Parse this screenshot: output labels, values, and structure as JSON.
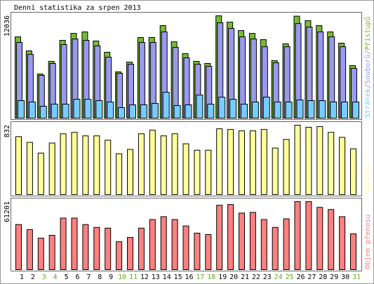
{
  "chart_data": {
    "type": "bar",
    "title": "Denní statistika za srpen 2013",
    "categories": [
      "1",
      "2",
      "3",
      "4",
      "5",
      "6",
      "7",
      "8",
      "9",
      "10",
      "11",
      "12",
      "13",
      "14",
      "15",
      "16",
      "17",
      "18",
      "19",
      "20",
      "21",
      "22",
      "23",
      "24",
      "25",
      "26",
      "27",
      "28",
      "29",
      "30",
      "31"
    ],
    "weekend": [
      2,
      3,
      9,
      10,
      16,
      17,
      23,
      24,
      30
    ],
    "weekday_color": "#000000",
    "weekend_color": "#66aa22",
    "legend_separator": "/",
    "panels": [
      {
        "ylim": [
          0,
          12036
        ],
        "yticks": [
          12036
        ],
        "series": [
          {
            "name": "Stránek",
            "color": "#77ccff",
            "values": [
              2060,
              1900,
              1400,
              1650,
              1650,
              2220,
              2220,
              2060,
              1900,
              1240,
              1570,
              1570,
              1730,
              3050,
              1480,
              1570,
              2720,
              1650,
              2470,
              2220,
              1650,
              1900,
              2470,
              1900,
              1900,
              2140,
              2060,
              2060,
              1900,
              1900,
              1900
            ]
          },
          {
            "name": "Souborů",
            "color": "#9999ee",
            "values": [
              8900,
              7500,
              5030,
              6430,
              8650,
              9310,
              9150,
              8490,
              7170,
              5270,
              6340,
              8900,
              8900,
              10140,
              8320,
              7090,
              6340,
              6100,
              11210,
              10550,
              9560,
              9310,
              8400,
              6510,
              8400,
              11120,
              10710,
              10140,
              9560,
              8400,
              5850
            ]
          },
          {
            "name": "Přístupů",
            "color": "#77bb33",
            "values": [
              9560,
              7910,
              5190,
              6680,
              9150,
              9970,
              10140,
              9070,
              7750,
              5440,
              6590,
              9480,
              9480,
              10880,
              8980,
              7580,
              6680,
              6430,
              12036,
              11290,
              10300,
              9970,
              9230,
              6760,
              8740,
              11990,
              11460,
              10880,
              10140,
              8820,
              6180
            ]
          }
        ]
      },
      {
        "ylim": [
          0,
          832
        ],
        "yticks": [
          832
        ],
        "series": [
          {
            "name": "Návštěv",
            "color": "#ffff99",
            "values": [
              695,
              626,
              498,
              618,
              729,
              746,
              704,
              704,
              652,
              489,
              541,
              729,
              772,
              704,
              729,
              609,
              532,
              532,
              789,
              781,
              764,
              764,
              781,
              558,
              661,
              832,
              807,
              815,
              746,
              686,
              549
            ]
          }
        ]
      },
      {
        "ylim": [
          0,
          61201
        ],
        "yticks": [
          61201
        ],
        "series": [
          {
            "name": "Objem přenosu",
            "color": "#ff8080",
            "values": [
              40570,
              36060,
              28340,
              30910,
              46370,
              46370,
              40570,
              38000,
              37350,
              25120,
              28980,
              37350,
              45080,
              47660,
              45080,
              39280,
              32840,
              31560,
              57960,
              58600,
              50880,
              51520,
              45080,
              38000,
              45720,
              61201,
              61180,
              56030,
              54100,
              47660,
              32200
            ]
          }
        ]
      }
    ]
  }
}
